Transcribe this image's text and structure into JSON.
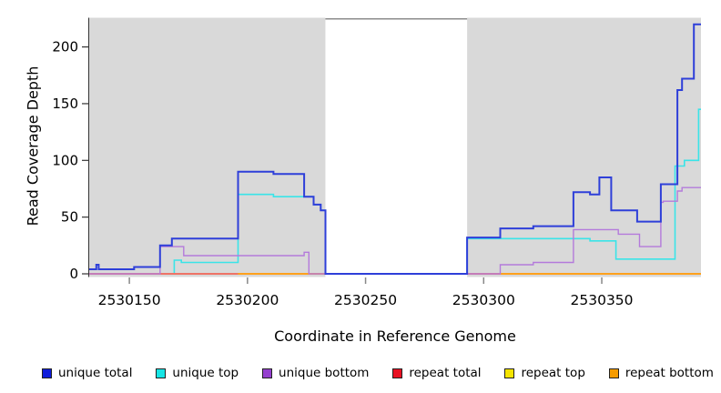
{
  "chart_data": {
    "type": "line",
    "subtype": "step-coverage-plot",
    "title": "",
    "xlabel": "Coordinate in Reference Genome",
    "ylabel": "Read Coverage Depth",
    "xlim": [
      2530133,
      2530392
    ],
    "ylim": [
      0,
      226
    ],
    "x_ticks": [
      2530150,
      2530200,
      2530250,
      2530300,
      2530350
    ],
    "y_ticks": [
      0,
      50,
      100,
      150,
      200
    ],
    "grid": "off",
    "legend_position": "bottom",
    "plot_bg_color": "#ffffff",
    "shaded_region_color": "#d9d9d9",
    "shaded_regions": [
      [
        2530133,
        2530233
      ],
      [
        2530293,
        2530392
      ]
    ],
    "gap_top_border": {
      "x_range": [
        2530233,
        2530293
      ],
      "color": "#8c8c8c"
    },
    "axis_color": "#333333",
    "tick_color_x": "#888888",
    "series": [
      {
        "name": "repeat top",
        "color": "#f5e400",
        "width": 1.5,
        "points": [
          [
            2530133,
            0
          ],
          [
            2530392,
            0
          ]
        ]
      },
      {
        "name": "unique top",
        "color": "#3ae4e8",
        "width": 1.6,
        "points": [
          [
            2530133,
            0
          ],
          [
            2530169,
            12
          ],
          [
            2530172,
            10
          ],
          [
            2530196,
            70
          ],
          [
            2530211,
            68
          ],
          [
            2530228,
            61
          ],
          [
            2530231,
            56
          ],
          [
            2530233,
            0
          ],
          [
            2530293,
            31
          ],
          [
            2530345,
            29
          ],
          [
            2530356,
            13
          ],
          [
            2530381,
            95
          ],
          [
            2530385,
            100
          ],
          [
            2530391,
            145
          ],
          [
            2530392,
            145
          ]
        ]
      },
      {
        "name": "repeat bottom",
        "color": "#ffa11c",
        "width": 2,
        "points": [
          [
            2530133,
            0
          ],
          [
            2530392,
            0
          ]
        ]
      },
      {
        "name": "repeat total",
        "color": "#e8647f",
        "width": 1.5,
        "points": [
          [
            2530133,
            0
          ],
          [
            2530196,
            0
          ]
        ]
      },
      {
        "name": "repeat total",
        "color": "#e8647f",
        "width": 1.5,
        "points": [
          [
            2530293,
            0
          ],
          [
            2530307,
            0
          ]
        ]
      },
      {
        "name": "unique bottom",
        "color": "#b47adb",
        "width": 1.4,
        "points": [
          [
            2530133,
            0
          ],
          [
            2530163,
            24
          ],
          [
            2530173,
            16
          ],
          [
            2530224,
            19
          ],
          [
            2530226,
            0
          ],
          [
            2530307,
            8
          ],
          [
            2530321,
            10
          ],
          [
            2530338,
            39
          ],
          [
            2530357,
            35
          ],
          [
            2530366,
            24
          ],
          [
            2530375,
            63
          ],
          [
            2530376,
            64
          ],
          [
            2530382,
            73
          ],
          [
            2530384,
            76
          ],
          [
            2530392,
            76
          ]
        ]
      },
      {
        "name": "unique total",
        "color": "#2e3fd9",
        "width": 2,
        "points": [
          [
            2530133,
            4
          ],
          [
            2530136,
            8
          ],
          [
            2530137,
            4
          ],
          [
            2530152,
            6
          ],
          [
            2530163,
            25
          ],
          [
            2530168,
            31
          ],
          [
            2530196,
            90
          ],
          [
            2530211,
            88
          ],
          [
            2530224,
            68
          ],
          [
            2530228,
            61
          ],
          [
            2530231,
            56
          ],
          [
            2530233,
            0
          ],
          [
            2530293,
            32
          ],
          [
            2530307,
            40
          ],
          [
            2530321,
            42
          ],
          [
            2530338,
            72
          ],
          [
            2530345,
            70
          ],
          [
            2530349,
            85
          ],
          [
            2530354,
            56
          ],
          [
            2530365,
            46
          ],
          [
            2530375,
            79
          ],
          [
            2530382,
            162
          ],
          [
            2530384,
            172
          ],
          [
            2530389,
            220
          ],
          [
            2530392,
            220
          ]
        ]
      }
    ],
    "legend": [
      {
        "label": "unique total",
        "color": "#0f1ddb"
      },
      {
        "label": "unique top",
        "color": "#17e5e5"
      },
      {
        "label": "unique bottom",
        "color": "#9540cf"
      },
      {
        "label": "repeat total",
        "color": "#e81123"
      },
      {
        "label": "repeat top",
        "color": "#f5e400"
      },
      {
        "label": "repeat bottom",
        "color": "#f59b00"
      }
    ]
  }
}
